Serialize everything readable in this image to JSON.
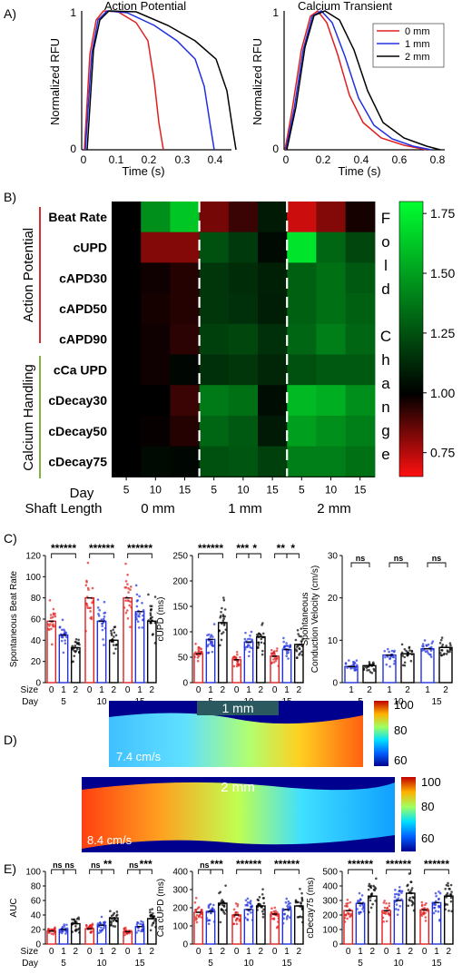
{
  "panel_labels": {
    "A": "A)",
    "B": "B)",
    "C": "C)",
    "D": "D)",
    "E": "E)"
  },
  "colors": {
    "zero_mm": "#e02020",
    "one_mm": "#2030e0",
    "two_mm": "#000000"
  },
  "panel_a": {
    "left": {
      "title": "Action Potential",
      "ylabel": "Normalized RFU",
      "xlabel": "Time (s)",
      "xticks": [
        "0",
        "0.1",
        "0.2",
        "0.3",
        "0.4"
      ],
      "yticks": [
        "0",
        "1"
      ]
    },
    "right": {
      "title": "Calcium Transient",
      "ylabel": "Normalized RFU",
      "xlabel": "Time (s)",
      "xticks": [
        "0",
        "0.2",
        "0.4",
        "0.6",
        "0.8"
      ],
      "yticks": [
        "0",
        "1"
      ],
      "legend": [
        "0 mm",
        "1 mm",
        "2 mm"
      ]
    }
  },
  "panel_b": {
    "rows": [
      "Beat Rate",
      "cUPD",
      "cAPD30",
      "cAPD50",
      "cAPD90",
      "cCa UPD",
      "cDecay30",
      "cDecay50",
      "cDecay75"
    ],
    "group_labels": [
      "Action Potential",
      "Calcium Handling"
    ],
    "day_label": "Day",
    "shaft_label": "Shaft Length",
    "days": [
      "5",
      "10",
      "15",
      "5",
      "10",
      "15",
      "5",
      "10",
      "15"
    ],
    "groups": [
      "0 mm",
      "1 mm",
      "2 mm"
    ],
    "colorbar_ticks": [
      "1.75",
      "1.50",
      "1.25",
      "1.00",
      "0.75"
    ],
    "colorbar_label": [
      "F",
      "o",
      "l",
      "d",
      "",
      "C",
      "h",
      "a",
      "n",
      "g",
      "e"
    ]
  },
  "panel_c": {
    "plot1_ylabel": "Spontaneous Beat Rate",
    "plot1_yticks": [
      "0",
      "20",
      "40",
      "60",
      "80",
      "100",
      "120"
    ],
    "plot2_ylabel": "cUPD (ms)",
    "plot2_yticks": [
      "0",
      "50",
      "100",
      "150",
      "200",
      "250"
    ],
    "plot3_ylabel": "Spontaneous Conduction Velocity (cm/s)",
    "plot3_yticks": [
      "0",
      "10",
      "20",
      "30"
    ],
    "size_label": "Size",
    "day_label": "Day",
    "sizes3": [
      "0",
      "1",
      "2"
    ],
    "sizes2": [
      "1",
      "2"
    ],
    "days": [
      "5",
      "10",
      "15"
    ],
    "sig1": [
      "******",
      "******",
      "******"
    ],
    "sig2": [
      "******",
      "***",
      "*",
      "**",
      "*"
    ],
    "sig3": [
      "ns",
      "ns",
      "ns"
    ]
  },
  "panel_d": {
    "map1_label": "1 mm",
    "map1_velocity": "7.4 cm/s",
    "map2_label": "2 mm",
    "map2_velocity": "8.4 cm/s",
    "scale_ticks": [
      "100",
      "80",
      "60"
    ]
  },
  "panel_e": {
    "plot1_ylabel": "AUC",
    "plot1_yticks": [
      "0",
      "20",
      "40",
      "60",
      "80",
      "100"
    ],
    "plot2_ylabel": "Ca cUPD (ms)",
    "plot2_yticks": [
      "0",
      "100",
      "200",
      "300",
      "400"
    ],
    "plot3_ylabel": "cDecay75 (ms)",
    "plot3_yticks": [
      "0",
      "100",
      "200",
      "300",
      "400",
      "500"
    ],
    "sig1": [
      "ns",
      "ns",
      "ns",
      "**",
      "ns",
      "***"
    ],
    "sig2": [
      "ns",
      "***",
      "******",
      "******"
    ],
    "sig3": [
      "******",
      "******",
      "******"
    ]
  },
  "chart_data": [
    {
      "type": "heatmap",
      "rows": [
        "Beat Rate",
        "cUPD",
        "cAPD30",
        "cAPD50",
        "cAPD90",
        "cCa UPD",
        "cDecay30",
        "cDecay50",
        "cDecay75"
      ],
      "columns": [
        "0 mm Day 5",
        "0 mm Day 10",
        "0 mm Day 15",
        "1 mm Day 5",
        "1 mm Day 10",
        "1 mm Day 15",
        "2 mm Day 5",
        "2 mm Day 10",
        "2 mm Day 15"
      ],
      "values": [
        [
          1.0,
          1.45,
          1.62,
          0.84,
          0.92,
          1.08,
          0.72,
          0.82,
          0.97
        ],
        [
          1.0,
          0.82,
          0.82,
          1.25,
          1.18,
          1.03,
          1.72,
          1.32,
          1.22
        ],
        [
          1.0,
          0.98,
          0.95,
          1.17,
          1.14,
          1.1,
          1.3,
          1.35,
          1.28
        ],
        [
          1.0,
          0.97,
          0.95,
          1.17,
          1.15,
          1.09,
          1.3,
          1.35,
          1.3
        ],
        [
          1.0,
          0.98,
          0.94,
          1.2,
          1.22,
          1.15,
          1.32,
          1.4,
          1.32
        ],
        [
          1.0,
          0.98,
          1.02,
          1.15,
          1.17,
          1.12,
          1.25,
          1.28,
          1.28
        ],
        [
          1.0,
          1.0,
          0.92,
          1.38,
          1.35,
          1.04,
          1.58,
          1.55,
          1.45
        ],
        [
          1.0,
          0.99,
          0.95,
          1.32,
          1.28,
          1.08,
          1.5,
          1.45,
          1.4
        ],
        [
          1.0,
          1.03,
          1.02,
          1.25,
          1.27,
          1.2,
          1.4,
          1.4,
          1.35
        ]
      ],
      "colorbar_range": [
        0.65,
        1.8
      ]
    },
    {
      "type": "bar",
      "title": "",
      "ylabel": "Spontaneous Beat Rate",
      "categories": [
        "5-0",
        "5-1",
        "5-2",
        "10-0",
        "10-1",
        "10-2",
        "15-0",
        "15-1",
        "15-2"
      ],
      "values": [
        58,
        45,
        33,
        80,
        58,
        40,
        80,
        67,
        58
      ],
      "ylim": [
        0,
        120
      ]
    },
    {
      "type": "bar",
      "ylabel": "cUPD (ms)",
      "categories": [
        "5-0",
        "5-1",
        "5-2",
        "10-0",
        "10-1",
        "10-2",
        "15-0",
        "15-1",
        "15-2"
      ],
      "values": [
        57,
        85,
        118,
        45,
        80,
        90,
        52,
        65,
        75
      ],
      "ylim": [
        0,
        250
      ]
    },
    {
      "type": "bar",
      "ylabel": "Spontaneous Conduction Velocity (cm/s)",
      "categories": [
        "5-1",
        "5-2",
        "10-1",
        "10-2",
        "15-1",
        "15-2"
      ],
      "values": [
        3.8,
        4.0,
        6.5,
        6.8,
        8.0,
        8.3
      ],
      "ylim": [
        0,
        30
      ]
    },
    {
      "type": "bar",
      "ylabel": "AUC",
      "categories": [
        "5-0",
        "5-1",
        "5-2",
        "10-0",
        "10-1",
        "10-2",
        "15-0",
        "15-1",
        "15-2"
      ],
      "values": [
        18,
        20,
        28,
        21,
        26,
        36,
        17,
        24,
        35
      ],
      "ylim": [
        0,
        100
      ]
    },
    {
      "type": "bar",
      "ylabel": "Ca cUPD (ms)",
      "categories": [
        "5-0",
        "5-1",
        "5-2",
        "10-0",
        "10-1",
        "10-2",
        "15-0",
        "15-1",
        "15-2"
      ],
      "values": [
        175,
        180,
        225,
        160,
        190,
        210,
        165,
        190,
        210
      ],
      "ylim": [
        0,
        400
      ]
    },
    {
      "type": "bar",
      "ylabel": "cDecay75 (ms)",
      "categories": [
        "5-0",
        "5-1",
        "5-2",
        "10-0",
        "10-1",
        "10-2",
        "15-0",
        "15-1",
        "15-2"
      ],
      "values": [
        230,
        280,
        330,
        230,
        300,
        350,
        235,
        285,
        330
      ],
      "ylim": [
        0,
        500
      ]
    }
  ]
}
